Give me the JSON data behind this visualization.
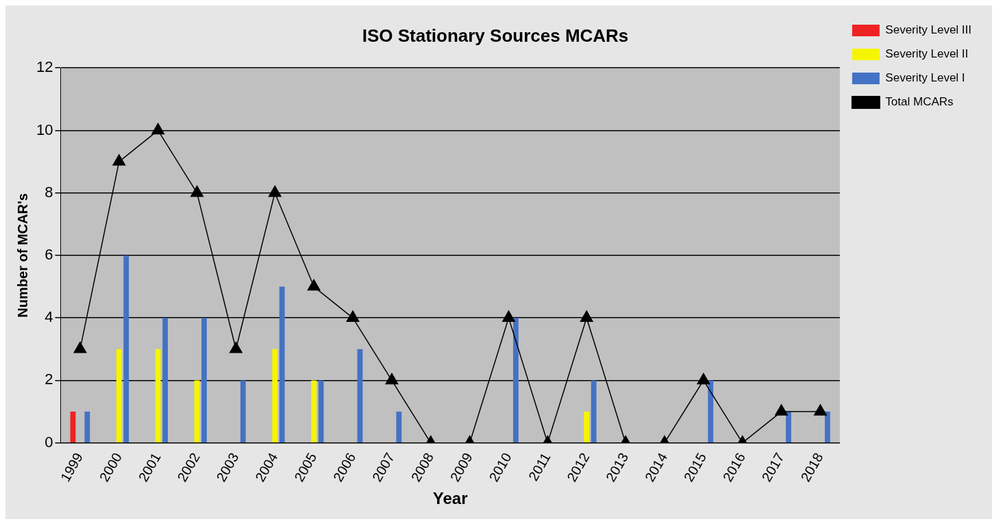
{
  "chart_data": {
    "type": "bar",
    "title": "ISO Stationary Sources MCARs",
    "xlabel": "Year",
    "ylabel": "Number of MCAR's",
    "categories": [
      "1999",
      "2000",
      "2001",
      "2002",
      "2003",
      "2004",
      "2005",
      "2006",
      "2007",
      "2008",
      "2009",
      "2010",
      "2011",
      "2012",
      "2013",
      "2014",
      "2015",
      "2016",
      "2017",
      "2018"
    ],
    "series": [
      {
        "name": "Severity Level III",
        "color": "#ee2222",
        "values": [
          1,
          0,
          0,
          0,
          0,
          0,
          0,
          0,
          0,
          0,
          0,
          0,
          0,
          0,
          0,
          0,
          0,
          0,
          0,
          0
        ]
      },
      {
        "name": "Severity Level II",
        "color": "#f5f500",
        "values": [
          0,
          3,
          3,
          2,
          0,
          3,
          2,
          0,
          0,
          0,
          0,
          0,
          0,
          1,
          0,
          0,
          0,
          0,
          0,
          0
        ]
      },
      {
        "name": "Severity Level I",
        "color": "#4472c4",
        "values": [
          1,
          6,
          4,
          4,
          2,
          5,
          2,
          3,
          1,
          0,
          0,
          4,
          0,
          2,
          0,
          0,
          2,
          0,
          1,
          1
        ]
      },
      {
        "name": "Total MCARs",
        "type": "line",
        "color": "#000000",
        "marker": "triangle",
        "values": [
          3,
          9,
          10,
          8,
          3,
          8,
          5,
          4,
          2,
          0,
          0,
          4,
          0,
          4,
          0,
          0,
          2,
          0,
          1,
          1
        ]
      }
    ],
    "ylim": [
      0,
      12
    ],
    "yticks": [
      0,
      2,
      4,
      6,
      8,
      10,
      12
    ],
    "grid": "y",
    "legend": "top right"
  }
}
